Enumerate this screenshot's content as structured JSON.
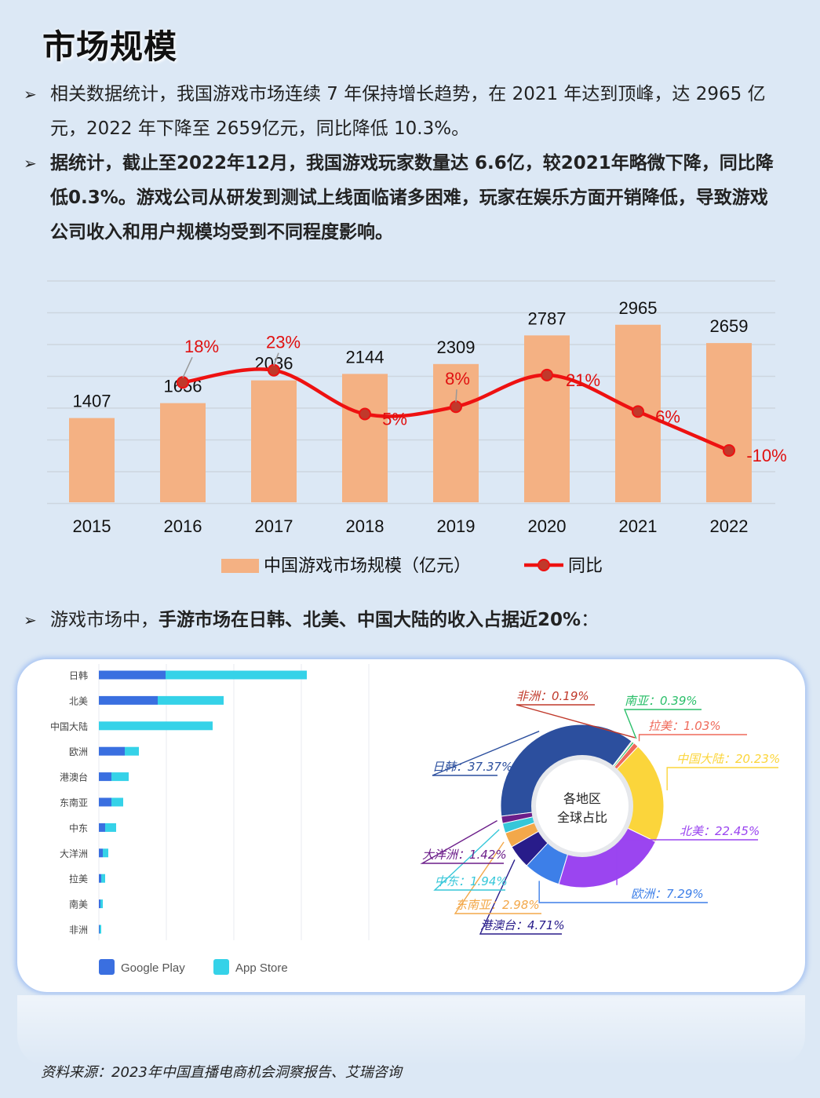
{
  "page": {
    "title": "市场规模",
    "bullet_arrow": "➢",
    "bullets": [
      "相关数据统计，我国游戏市场连续 7 年保持增长趋势，在 2021 年达到顶峰，达 2965 亿元，2022 年下降至 2659亿元，同比降低 10.3%。",
      "据统计，截止至2022年12月，我国游戏玩家数量达 6.6亿，较2021年略微下降，同比降低0.3%。游戏公司从研发到测试上线面临诸多困难，玩家在娱乐方面开销降低，导致游戏公司收入和用户规模均受到不同程度影响。"
    ],
    "bullet3_prefix": "游戏市场中，",
    "bullet3_emph": "手游市场在日韩、北美、中国大陆的收入占据近20%",
    "bullet3_suffix": "：",
    "source": "资料来源：2023年中国直播电商机会洞察报告、艾瑞咨询",
    "colors": {
      "background": "#dce8f5",
      "bar": "#f4b183",
      "line": "#ee1111",
      "google_play": "#3a6fe0",
      "app_store": "#35d2e8"
    }
  },
  "chart_data": [
    {
      "type": "bar",
      "categories": [
        "2015",
        "2016",
        "2017",
        "2018",
        "2019",
        "2020",
        "2021",
        "2022"
      ],
      "series": [
        {
          "name": "中国游戏市场规模（亿元）",
          "type": "bar",
          "values": [
            1407,
            1656,
            2036,
            2144,
            2309,
            2787,
            2965,
            2659
          ],
          "labels": [
            "1407",
            "1656",
            "2036",
            "2144",
            "2309",
            "2787",
            "2965",
            "2659"
          ]
        },
        {
          "name": "同比",
          "type": "line",
          "values": [
            null,
            18,
            23,
            5,
            8,
            21,
            6,
            -10
          ],
          "labels": [
            "",
            "18%",
            "23%",
            "5%",
            "8%",
            "21%",
            "6%",
            "-10%"
          ]
        }
      ],
      "grid": true,
      "legend": "bottom"
    },
    {
      "type": "bar",
      "orientation": "horizontal",
      "categories": [
        "日韩",
        "北美",
        "中国大陆",
        "欧洲",
        "港澳台",
        "东南亚",
        "中东",
        "大洋洲",
        "拉美",
        "南美",
        "非洲"
      ],
      "series": [
        {
          "name": "Google Play",
          "values": [
            85,
            75,
            0,
            33,
            16,
            16,
            8,
            5,
            3,
            2,
            1
          ]
        },
        {
          "name": "App Store",
          "values": [
            180,
            84,
            145,
            18,
            22,
            15,
            14,
            7,
            5,
            3,
            2
          ]
        }
      ],
      "legend": "bottom-left"
    },
    {
      "type": "pie",
      "donut": true,
      "center_text": [
        "各地区",
        "全球占比"
      ],
      "slices": [
        {
          "label": "日韩",
          "value": 37.37,
          "text": "37.37%",
          "color": "#2c4f9e"
        },
        {
          "label": "非洲",
          "value": 0.19,
          "text": "0.19%",
          "color": "#c0392b"
        },
        {
          "label": "南亚",
          "value": 0.39,
          "text": "0.39%",
          "color": "#2bbf6a"
        },
        {
          "label": "拉美",
          "value": 1.03,
          "text": "1.03%",
          "color": "#ef6a5a"
        },
        {
          "label": "中国大陆",
          "value": 20.23,
          "text": "20.23%",
          "color": "#fbd53b"
        },
        {
          "label": "北美",
          "value": 22.45,
          "text": "22.45%",
          "color": "#9b45f0"
        },
        {
          "label": "欧洲",
          "value": 7.29,
          "text": "7.29%",
          "color": "#3d7fe8"
        },
        {
          "label": "港澳台",
          "value": 4.71,
          "text": "4.71%",
          "color": "#281c8a"
        },
        {
          "label": "东南亚",
          "value": 2.98,
          "text": "2.98%",
          "color": "#f3a84a"
        },
        {
          "label": "中东",
          "value": 1.94,
          "text": "1.94%",
          "color": "#36c7d9"
        },
        {
          "label": "大洋洲",
          "value": 1.42,
          "text": "1.42%",
          "color": "#6c1e8a"
        }
      ]
    }
  ]
}
